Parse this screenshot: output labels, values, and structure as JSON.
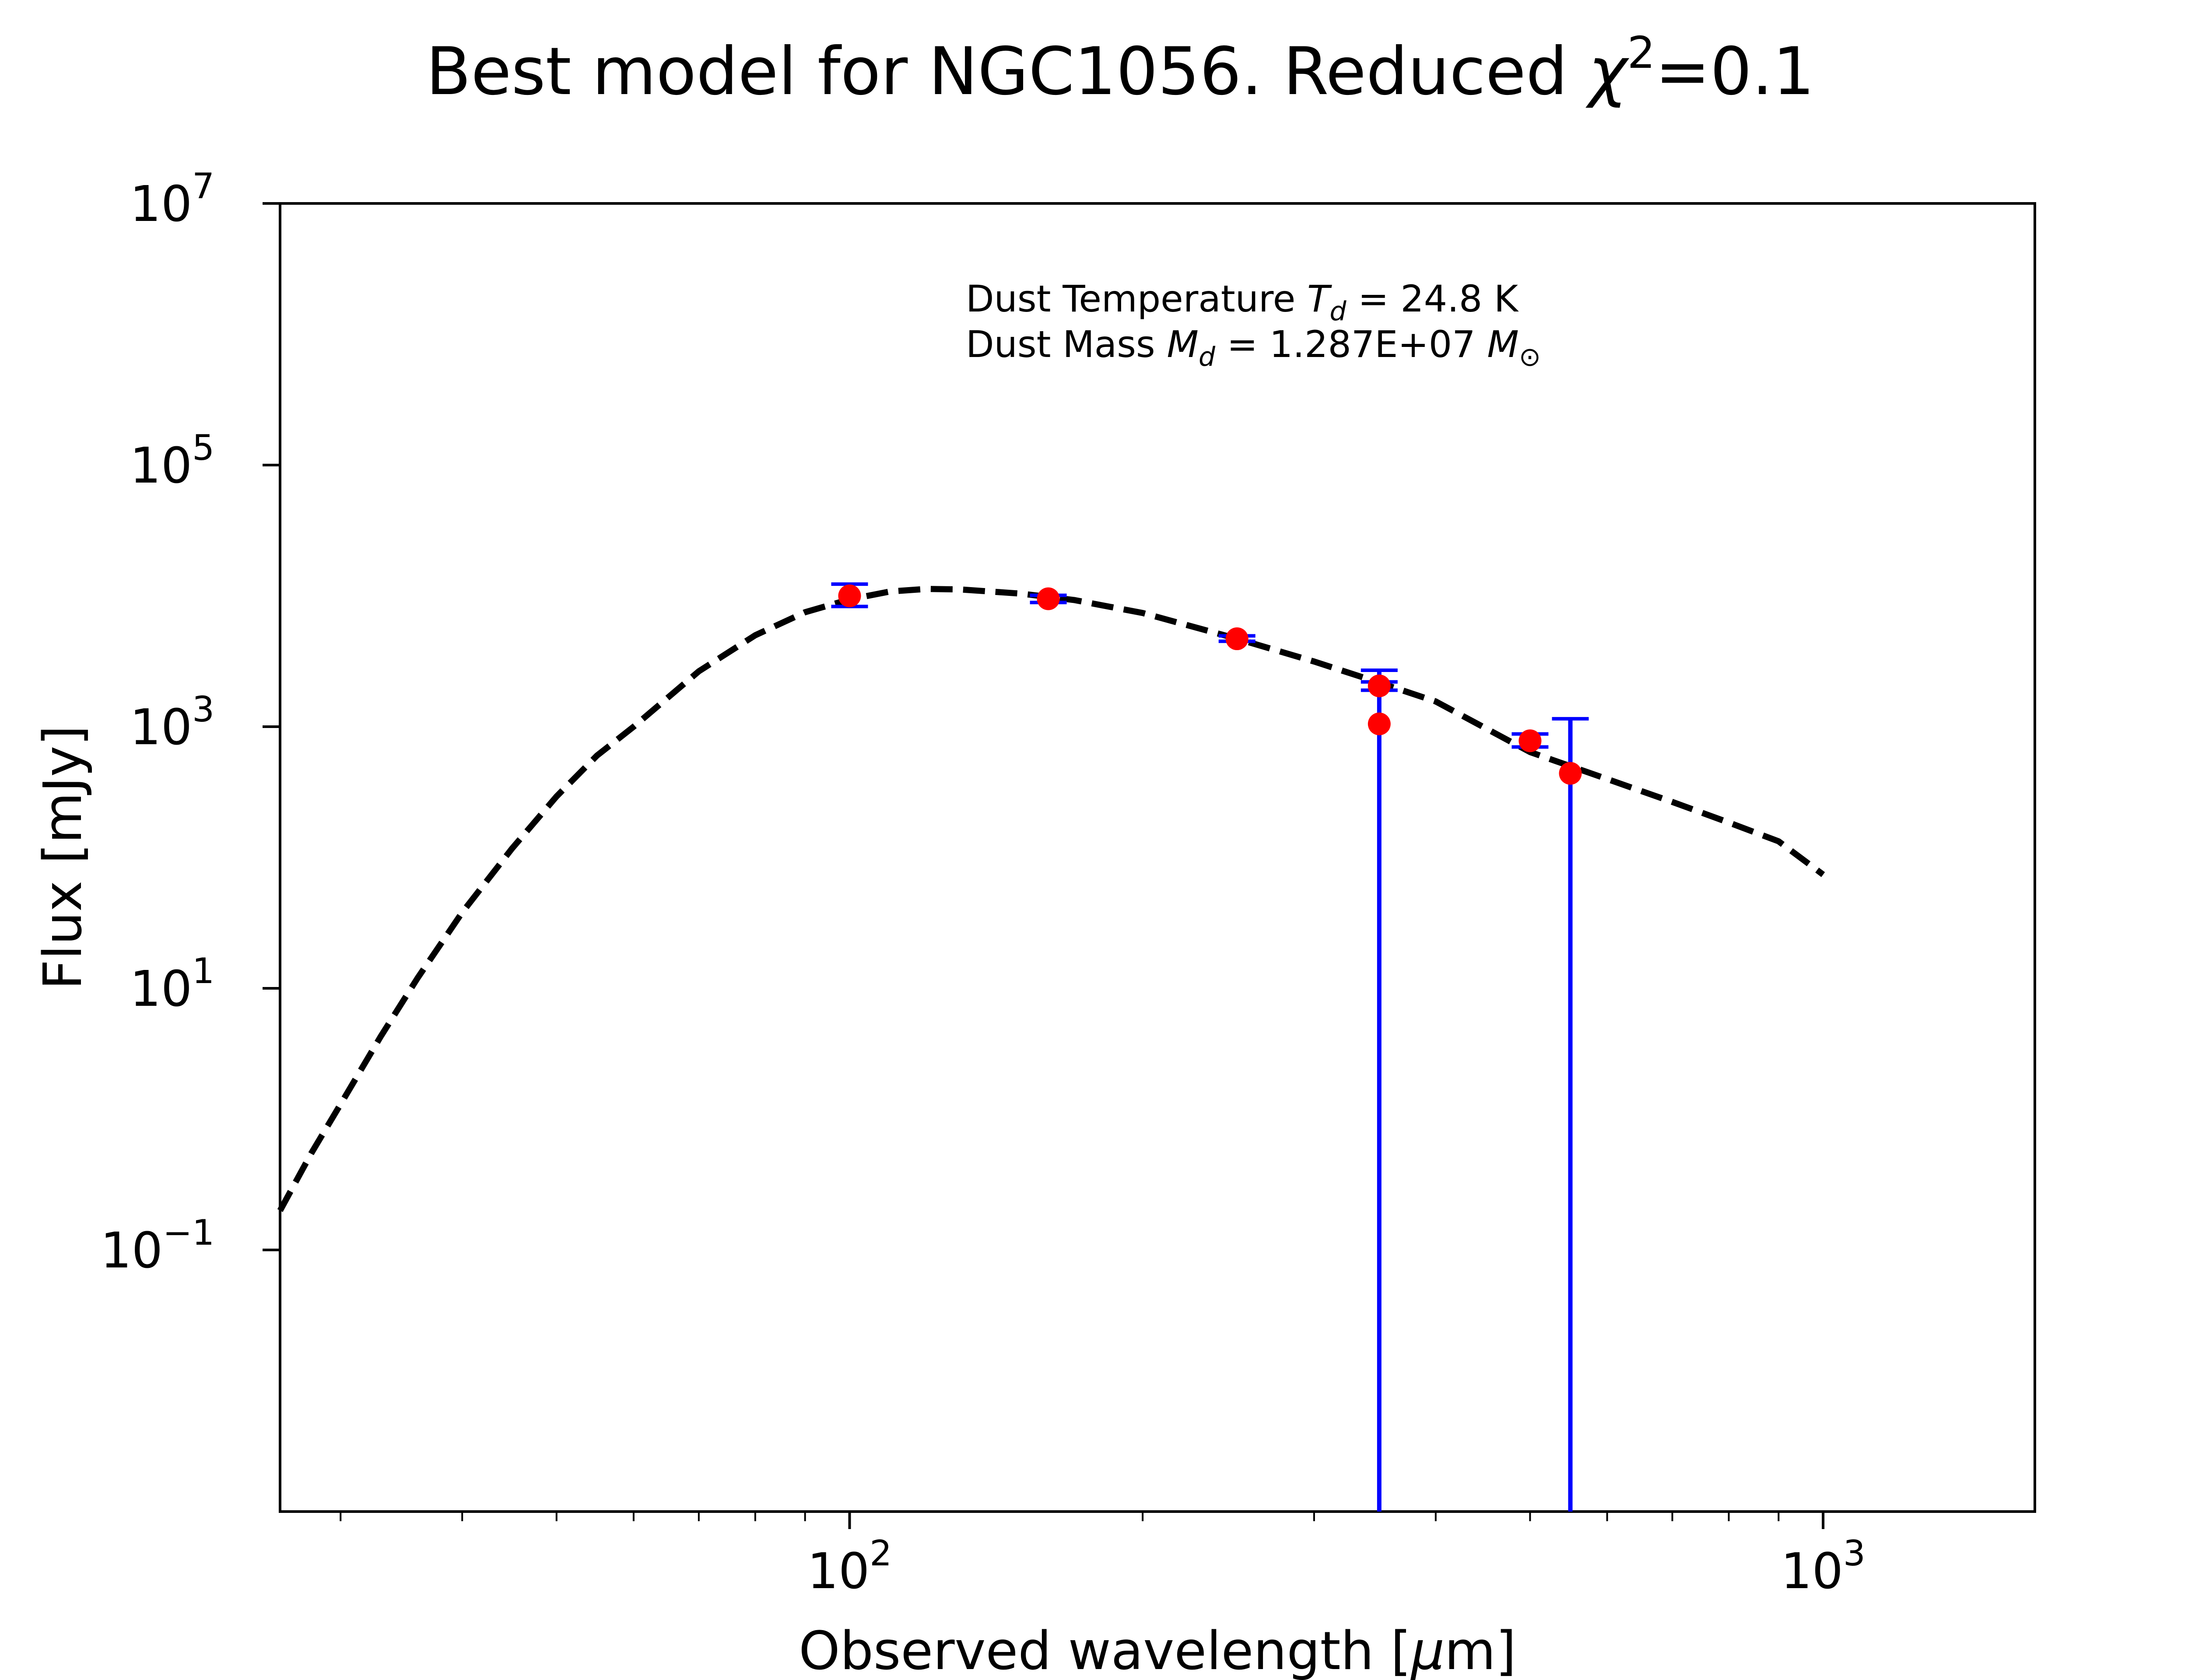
{
  "chart_data": {
    "type": "scatter",
    "title": {
      "main": "Best model for NGC1056. Reduced ",
      "chi": "χ",
      "exp": "2",
      "value": "=0.1"
    },
    "xlabel": {
      "pre": "Observed wavelength [",
      "mu": "μ",
      "post": "m]"
    },
    "ylabel": "Flux [mJy]",
    "x_scale": "log",
    "y_scale": "log",
    "xlim": [
      26,
      1650
    ],
    "ylim": [
      0.001,
      10000000
    ],
    "x_ticks": [
      {
        "value": 100,
        "base": "10",
        "exp": "2"
      },
      {
        "value": 1000,
        "base": "10",
        "exp": "3"
      }
    ],
    "y_ticks": [
      {
        "value": 0.1,
        "base": "10",
        "exp": "−1"
      },
      {
        "value": 10,
        "base": "10",
        "exp": "1"
      },
      {
        "value": 1000,
        "base": "10",
        "exp": "3"
      },
      {
        "value": 100000,
        "base": "10",
        "exp": "5"
      },
      {
        "value": 10000000,
        "base": "10",
        "exp": "7"
      }
    ],
    "grid": false,
    "annotation": {
      "line1_pre": "Dust Temperature ",
      "line1_sym": "T",
      "line1_sub": "d",
      "line1_val": " = 24.8 K",
      "line2_pre": "Dust Mass ",
      "line2_sym": "M",
      "line2_sub": "d",
      "line2_val": " = 1.287E+07 ",
      "line2_unit": "M",
      "line2_unit_sub": "⊙"
    },
    "observations": {
      "name": "",
      "color": "#ff0000",
      "errorbar_color": "#0000ff",
      "points": [
        {
          "x": 100,
          "y": 10000,
          "yerr_low": 8300,
          "yerr_high": 12300
        },
        {
          "x": 160,
          "y": 9500,
          "yerr_low": 8900,
          "yerr_high": 10100
        },
        {
          "x": 250,
          "y": 4700,
          "yerr_low": 4500,
          "yerr_high": 4950
        },
        {
          "x": 350,
          "y": 2050,
          "yerr_low": 1900,
          "yerr_high": 2200
        },
        {
          "x": 350,
          "y": 1050,
          "yerr_low": 0.001,
          "yerr_high": 2700
        },
        {
          "x": 500,
          "y": 780,
          "yerr_low": 700,
          "yerr_high": 880
        },
        {
          "x": 550,
          "y": 440,
          "yerr_low": 0.001,
          "yerr_high": 1150
        }
      ]
    },
    "model": {
      "name": "",
      "color": "#000000",
      "style": "dashed",
      "x": [
        26,
        28,
        30,
        33,
        36,
        40,
        45,
        50,
        55,
        60,
        70,
        80,
        90,
        100,
        110,
        120,
        130,
        150,
        170,
        200,
        250,
        300,
        350,
        400,
        500,
        600,
        700,
        800,
        900,
        1000
      ],
      "y": [
        0.2,
        0.55,
        1.3,
        4.3,
        12,
        38,
        117,
        293,
        600,
        1000,
        2650,
        5000,
        7500,
        9400,
        10800,
        11300,
        11200,
        10400,
        9300,
        7400,
        4700,
        3150,
        2170,
        1560,
        640,
        398,
        266,
        185,
        133,
        74
      ]
    }
  }
}
